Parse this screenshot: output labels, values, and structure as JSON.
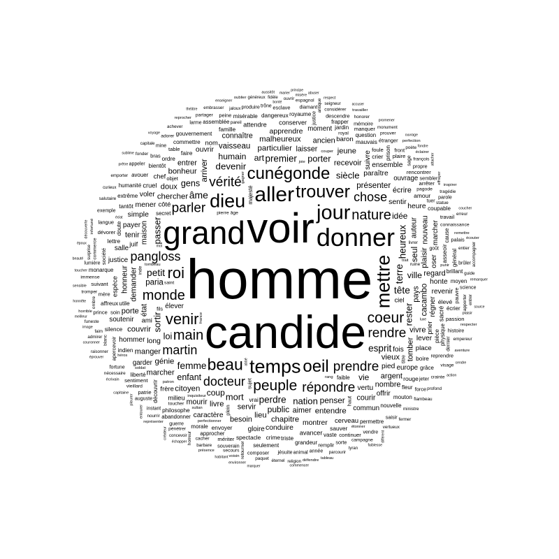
{
  "words": [
    "homme",
    "candide",
    "voir",
    "grand",
    "donner",
    "aller",
    "jour",
    "mettre",
    "temps",
    "dieu",
    "trouver",
    "cunégonde",
    "oeil",
    "beau",
    "venir",
    "roi",
    "coeur",
    "peuple",
    "monde",
    "nature",
    "main",
    "prendre",
    "vérité",
    "parler",
    "répondre",
    "rendre",
    "docteur",
    "martin",
    "pangloss",
    "chose",
    "âme",
    "terre",
    "tête",
    "petit",
    "femme",
    "esprit",
    "perdre",
    "premier",
    "heureux",
    "devenir",
    "siècle",
    "nation",
    "sortir",
    "passer",
    "mort",
    "rester",
    "porter",
    "gens",
    "loi",
    "enfant",
    "art",
    "ville",
    "seul",
    "humain",
    "public",
    "coup",
    "vie",
    "idée",
    "penser",
    "arriver",
    "présenter",
    "paria",
    "particulier",
    "chercher",
    "vieux",
    "recevoir",
    "pays",
    "état",
    "demander",
    "servir",
    "aimer",
    "laisser",
    "maison",
    "auteur",
    "sentir",
    "long",
    "paraître",
    "pied",
    "vertu",
    "fois",
    "cacambo",
    "vaisseau",
    "génie",
    "malheureux",
    "citoyen",
    "entendre",
    "chapitre",
    "plaisir",
    "couvrir",
    "bonheur",
    "livre",
    "lieu",
    "doux",
    "vivre",
    "tomber",
    "jeune",
    "argent",
    "manger",
    "porte",
    "ancien",
    "marcher",
    "honneur",
    "courir",
    "regard",
    "nombre",
    "besoin",
    "entrer",
    "écrire",
    "nouveau",
    "mourir",
    "connaître",
    "tenir",
    "mener",
    "simple",
    "apprendre",
    "suivre",
    "ouvrir",
    "montrer",
    "conduire",
    "heure",
    "lever",
    "caractère",
    "régner",
    "ensemble",
    "honte",
    "hommer",
    "payer",
    "voler",
    "offrir",
    "oser",
    "justice",
    "revenir",
    "gloire",
    "commun",
    "salle",
    "soutenir",
    "marcher",
    "élever",
    "europe",
    "garder",
    "moment",
    "ouvrage",
    "baron",
    "prier",
    "cerveau",
    "place",
    "ami",
    "côté",
    "frère",
    "nom",
    "espèce",
    "ciel",
    "milieu",
    "juif",
    "chef",
    "cruel",
    "attendre",
    "sacré",
    "avancer",
    "conserver",
    "faire",
    "amour",
    "rouge",
    "élevé",
    "asseoir",
    "crime",
    "boire",
    "envoyer",
    "famille",
    "sauver",
    "spectacle",
    "pièce",
    "triste",
    "mauvais",
    "lettre",
    "vrai",
    "crier",
    "ordre",
    "doute",
    "utile",
    "affreux",
    "commettre",
    "philosophe",
    "bientôt",
    "indien",
    "découvrir",
    "dangereux",
    "tantôt",
    "jardin",
    "silence",
    "coupable",
    "nouvelle",
    "prison",
    "gouvernement",
    "extrême",
    "liberté",
    "misérable",
    "mouton",
    "brillant",
    "physique",
    "grandeur",
    "morale",
    "royaume",
    "fleur",
    "seulement",
    "permettre",
    "cause",
    "grâce",
    "vaste",
    "monarque",
    "avouer",
    "écrier",
    "humanité",
    "général",
    "assemblée",
    "faible",
    "approcher",
    "question",
    "frapper",
    "moyen",
    "majesté",
    "secret",
    "abandonner",
    "mériter",
    "sentiment",
    "rencontrer",
    "foule",
    "société",
    "suivant",
    "passion",
    "continuer",
    "dévorer",
    "arrêter",
    "objet",
    "pauvre",
    "plaire",
    "travail",
    "table",
    "patrie",
    "manquer",
    "reprendre",
    "apercevoir",
    "prince",
    "remplir",
    "soin",
    "mère",
    "langue",
    "bras",
    "sujet",
    "front",
    "esclave",
    "descendre",
    "étranger",
    "palais",
    "force",
    "haut",
    "fils",
    "jeter",
    "peine",
    "sembler",
    "histoire",
    "jésuite",
    "plein",
    "souverain",
    "saisir",
    "guerre",
    "sorte",
    "propre",
    "produire",
    "titre",
    "diamant",
    "mémoire",
    "animal",
    "auguste",
    "parole",
    "composer",
    "justice",
    "mine",
    "vendre",
    "fortune",
    "exemple",
    "lumière",
    "année",
    "sage",
    "brûler",
    "goût",
    "tuer",
    "trône",
    "appeler",
    "larme",
    "dernier",
    "instant",
    "science",
    "âge",
    "connaissance",
    "pierre",
    "royal",
    "inde",
    "toucher",
    "pagode",
    "vieillard",
    "saint",
    "cacher",
    "immense",
    "commerce",
    "considérer",
    "prouver",
    "secours",
    "pénétrer",
    "partager",
    "adorer",
    "blanc",
    "tromper",
    "crainte",
    "françois",
    "visage",
    "campagne",
    "espagnol",
    "retourner",
    "statue",
    "ministre",
    "salutaire",
    "honorer",
    "fonder",
    "pareil",
    "apporter",
    "entier",
    "tragédie",
    "flambeau",
    "paquet",
    "barbare",
    "nécessaire",
    "ombre",
    "funeste",
    "ruine",
    "nourrir",
    "achever",
    "jaloux",
    "empereur",
    "antique",
    "guide",
    "poète",
    "vertueux",
    "parcourir",
    "emporter",
    "embrasser",
    "horreur",
    "profond",
    "ouvrir",
    "éternel",
    "admirer",
    "livrer",
    "fidèle",
    "surprise",
    "monument",
    "seigneur",
    "erreur",
    "faim",
    "religion",
    "fermer",
    "accompagner",
    "concevoir",
    "raisonner",
    "curieux",
    "capitale",
    "généreux",
    "tyran",
    "entrer",
    "éclairer",
    "défendre",
    "horrible",
    "oublier",
    "voisin",
    "travailler",
    "infortuné",
    "perfection",
    "rang",
    "tombeau",
    "inquisiteur",
    "perfectionner",
    "couper",
    "france",
    "étonner",
    "joie",
    "remettre",
    "respecter",
    "patron",
    "reprocher",
    "effrayer",
    "sultan",
    "inspirer",
    "punir",
    "soldat",
    "trait",
    "présence",
    "gagner",
    "représenter",
    "héros",
    "aventure",
    "écouter",
    "tableau",
    "écrivain",
    "pleurer",
    "enseigner",
    "toucher",
    "remarquer",
    "plaisir",
    "capitaine",
    "misère",
    "découverte",
    "image",
    "couronner",
    "marier",
    "habitant",
    "sensible",
    "aussitôt",
    "entourer",
    "promener",
    "coucher",
    "prêtre",
    "voyage",
    "respect",
    "action",
    "créateur",
    "commencer",
    "environner",
    "échapper",
    "éprouver",
    "honnête",
    "théâtre",
    "attacher",
    "abuser",
    "bonté",
    "fondre",
    "faiblesse",
    "marquer",
    "meilleur",
    "abbé",
    "sublime",
    "cendre",
    "principe",
    "époux",
    "beauté",
    "accuser",
    "différent",
    "source",
    "luxe",
    "ouvrage",
    "mot",
    "éclat"
  ]
}
